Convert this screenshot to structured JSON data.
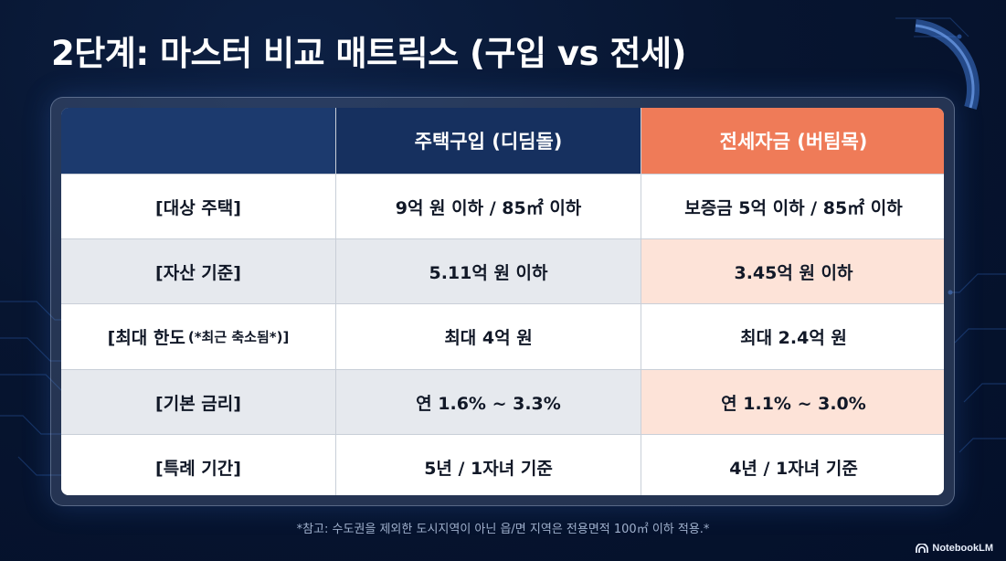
{
  "slide": {
    "title": "2단계: 마스터 비교 매트릭스 (구입 vs 전세)"
  },
  "table": {
    "headers": {
      "col1": "",
      "col2": "주택구입 (디딤돌)",
      "col3": "전세자금 (버팀목)"
    },
    "rows": [
      {
        "label": "[대상 주택]",
        "label_note": "",
        "buy": "9억 원 이하 / 85㎡ 이하",
        "jeonse": "보증금 5억 이하 / 85㎡ 이하"
      },
      {
        "label": "[자산 기준]",
        "label_note": "",
        "buy": "5.11억 원 이하",
        "jeonse": "3.45억 원 이하"
      },
      {
        "label": "[최대 한도",
        "label_note": "(*최근 축소됨*)]",
        "buy": "최대 4억 원",
        "jeonse": "최대 2.4억 원"
      },
      {
        "label": "[기본 금리]",
        "label_note": "",
        "buy": "연 1.6% ~ 3.3%",
        "jeonse": "연 1.1% ~ 3.0%"
      },
      {
        "label": "[특례 기간]",
        "label_note": "",
        "buy": "5년 / 1자녀 기준",
        "jeonse": "4년 / 1자녀 기준"
      }
    ]
  },
  "footnote": "*참고: 수도권을 제외한 도시지역이 아닌 읍/면 지역은 전용면적 100㎡ 이하 적용.*",
  "brand": {
    "label": "NotebookLM",
    "icon": "notebooklm-logo-icon"
  },
  "colors": {
    "background": "#071530",
    "header_buy": "#16305f",
    "header_jeonse": "#ef7b58",
    "jeonse_tint": "#fde3d8"
  }
}
